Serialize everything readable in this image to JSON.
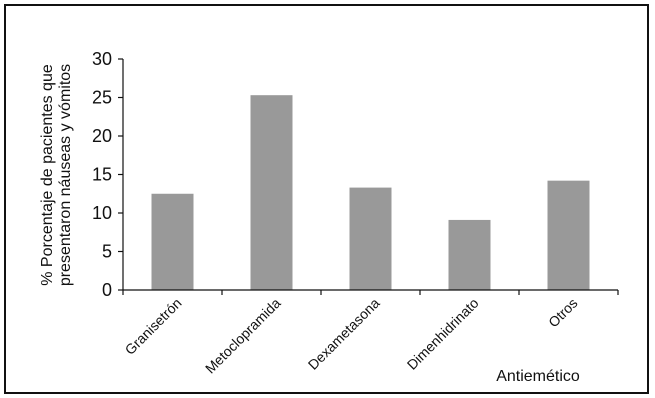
{
  "chart_data": {
    "type": "bar",
    "categories": [
      "Granisetrón",
      "Metoclopramida",
      "Dexametasona",
      "Dimenhidrinato",
      "Otros"
    ],
    "values": [
      12.5,
      25.3,
      13.3,
      9.1,
      14.2
    ],
    "title": "",
    "xlabel": "Antiemético",
    "ylabel_lines": [
      "% Porcentaje de pacientes que",
      "presentaron náuseas y vómitos"
    ],
    "ylim": [
      0,
      30
    ],
    "yticks": [
      0,
      5,
      10,
      15,
      20,
      25,
      30
    ],
    "bar_color": "#999999",
    "grid": false,
    "legend": "none"
  }
}
